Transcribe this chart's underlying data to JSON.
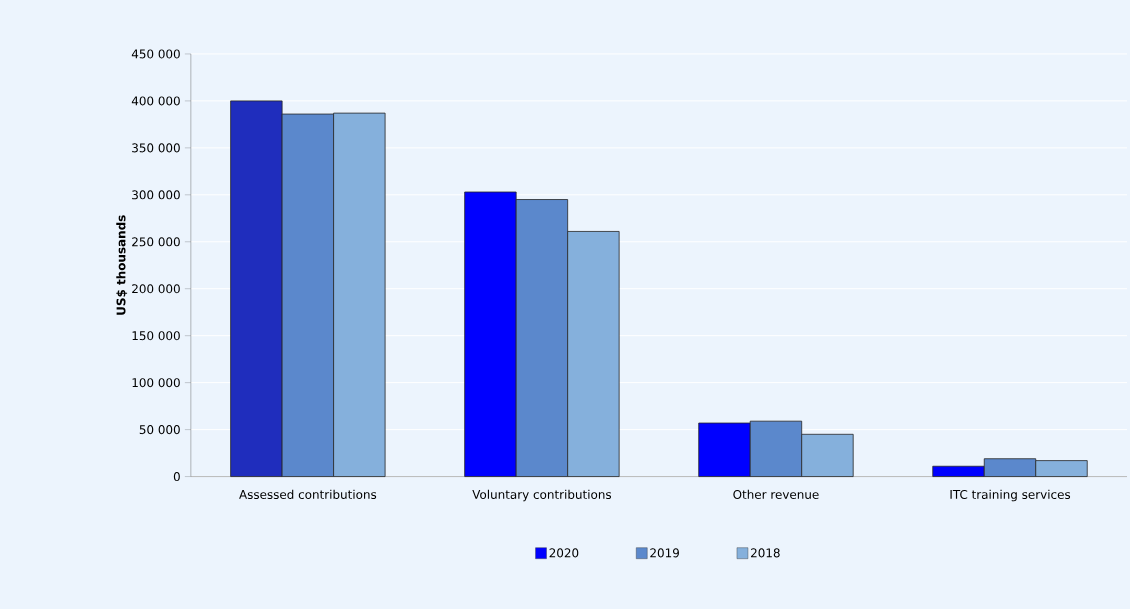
{
  "chart_data": {
    "type": "bar",
    "ylabel": "US$ thousands",
    "categories": [
      "Assessed contributions",
      "Voluntary contributions",
      "Other revenue",
      "ITC training services"
    ],
    "series": [
      {
        "name": "2020",
        "color": "#0000ff",
        "colors": [
          "#1f2dbd",
          "#0000ff",
          "#0000ff",
          "#0000ff"
        ],
        "values": [
          400000,
          303000,
          57000,
          11000
        ]
      },
      {
        "name": "2019",
        "color": "#5b88cc",
        "values": [
          386000,
          295000,
          59000,
          19000
        ]
      },
      {
        "name": "2018",
        "color": "#85b0dc",
        "values": [
          387000,
          261000,
          45000,
          17000
        ]
      }
    ],
    "ylim": [
      0,
      450000
    ],
    "yticks": [
      {
        "value": 0,
        "label": "0"
      },
      {
        "value": 50000,
        "label": "50 000"
      },
      {
        "value": 100000,
        "label": "100 000"
      },
      {
        "value": 150000,
        "label": "150 000"
      },
      {
        "value": 200000,
        "label": "200 000"
      },
      {
        "value": 250000,
        "label": "250 000"
      },
      {
        "value": 300000,
        "label": "300 000"
      },
      {
        "value": 350000,
        "label": "350 000"
      },
      {
        "value": 400000,
        "label": "400 000"
      },
      {
        "value": 450000,
        "label": "450 000"
      }
    ],
    "grid": "y",
    "legend": "bottom"
  }
}
